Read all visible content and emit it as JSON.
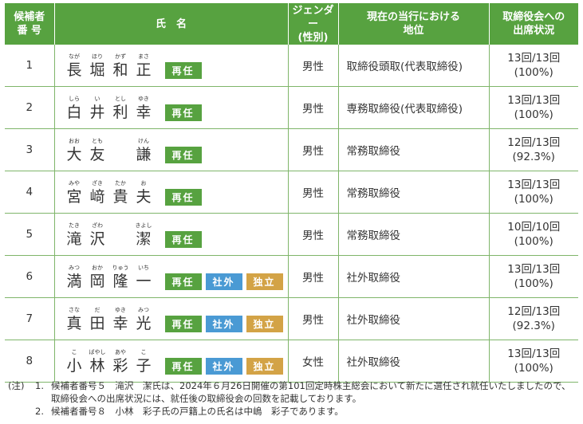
{
  "header": {
    "num": "候補者\n番 号",
    "name": "氏　名",
    "gender": "ジェンダー\n(性別)",
    "position": "現在の当行における\n地位",
    "attendance": "取締役会への\n出席状況"
  },
  "badges": {
    "reelect": "再任",
    "outside": "社外",
    "indep": "独立"
  },
  "rows": [
    {
      "num": "1",
      "chars": [
        {
          "k": "長",
          "r": "なが"
        },
        {
          "k": "堀",
          "r": "ほり"
        },
        {
          "k": "和",
          "r": "かず"
        },
        {
          "k": "正",
          "r": "まさ"
        }
      ],
      "reelect": true,
      "outside": false,
      "indep": false,
      "gender": "男性",
      "position": "取締役頭取(代表取締役)",
      "att1": "13回/13回",
      "att2": "(100%)"
    },
    {
      "num": "2",
      "chars": [
        {
          "k": "白",
          "r": "しら"
        },
        {
          "k": "井",
          "r": "い"
        },
        {
          "k": "利",
          "r": "とし"
        },
        {
          "k": "幸",
          "r": "ゆき"
        }
      ],
      "reelect": true,
      "outside": false,
      "indep": false,
      "gender": "男性",
      "position": "専務取締役(代表取締役)",
      "att1": "13回/13回",
      "att2": "(100%)"
    },
    {
      "num": "3",
      "chars": [
        {
          "k": "大",
          "r": "おお"
        },
        {
          "k": "友",
          "r": "とも"
        },
        {
          "k": "",
          "r": ""
        },
        {
          "k": "謙",
          "r": "けん"
        }
      ],
      "reelect": true,
      "outside": false,
      "indep": false,
      "gender": "男性",
      "position": "常務取締役",
      "att1": "12回/13回",
      "att2": "(92.3%)"
    },
    {
      "num": "4",
      "chars": [
        {
          "k": "宮",
          "r": "みや"
        },
        {
          "k": "﨑",
          "r": "ざき"
        },
        {
          "k": "貴",
          "r": "たか"
        },
        {
          "k": "夫",
          "r": "お"
        }
      ],
      "reelect": true,
      "outside": false,
      "indep": false,
      "gender": "男性",
      "position": "常務取締役",
      "att1": "13回/13回",
      "att2": "(100%)"
    },
    {
      "num": "5",
      "chars": [
        {
          "k": "滝",
          "r": "たき"
        },
        {
          "k": "沢",
          "r": "ざわ"
        },
        {
          "k": "",
          "r": ""
        },
        {
          "k": "潔",
          "r": "きよし"
        }
      ],
      "reelect": true,
      "outside": false,
      "indep": false,
      "gender": "男性",
      "position": "常務取締役",
      "att1": "10回/10回",
      "att2": "(100%)"
    },
    {
      "num": "6",
      "chars": [
        {
          "k": "満",
          "r": "みつ"
        },
        {
          "k": "岡",
          "r": "おか"
        },
        {
          "k": "隆",
          "r": "りゅう"
        },
        {
          "k": "一",
          "r": "いち"
        }
      ],
      "reelect": true,
      "outside": true,
      "indep": true,
      "gender": "男性",
      "position": "社外取締役",
      "att1": "13回/13回",
      "att2": "(100%)"
    },
    {
      "num": "7",
      "chars": [
        {
          "k": "真",
          "r": "さな"
        },
        {
          "k": "田",
          "r": "だ"
        },
        {
          "k": "幸",
          "r": "ゆき"
        },
        {
          "k": "光",
          "r": "みつ"
        }
      ],
      "reelect": true,
      "outside": true,
      "indep": true,
      "gender": "男性",
      "position": "社外取締役",
      "att1": "12回/13回",
      "att2": "(92.3%)"
    },
    {
      "num": "8",
      "chars": [
        {
          "k": "小",
          "r": "こ"
        },
        {
          "k": "林",
          "r": "ばやし"
        },
        {
          "k": "彩",
          "r": "あや"
        },
        {
          "k": "子",
          "r": "こ"
        }
      ],
      "reelect": true,
      "outside": true,
      "indep": true,
      "gender": "女性",
      "position": "社外取締役",
      "att1": "13回/13回",
      "att2": "(100%)"
    }
  ],
  "notes": {
    "label": "(注)",
    "items": [
      {
        "num": "1.",
        "text": "候補者番号５　滝沢　潔氏は、2024年６月26日開催の第101回定時株主総会において新たに選任され就任いたしましたので、取締役会への出席状況には、就任後の取締役会の回数を記載しております。"
      },
      {
        "num": "2.",
        "text": "候補者番号８　小林　彩子氏の戸籍上の氏名は中嶋　彩子であります。"
      }
    ]
  },
  "colors": {
    "header_green": "#57a240",
    "reelect_green": "#57a240",
    "outside_blue": "#4a9ad4",
    "indep_gold": "#d3a346"
  }
}
